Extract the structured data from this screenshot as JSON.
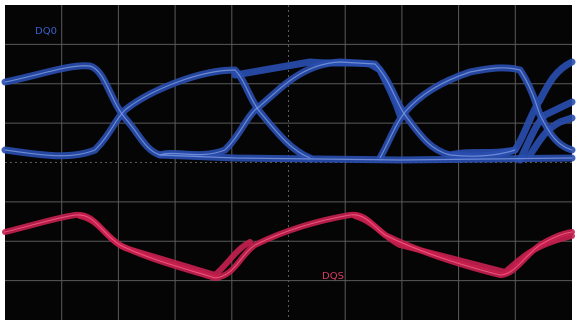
{
  "labels": {
    "channel_1": "DQ0",
    "channel_2": "DQS"
  }
}
